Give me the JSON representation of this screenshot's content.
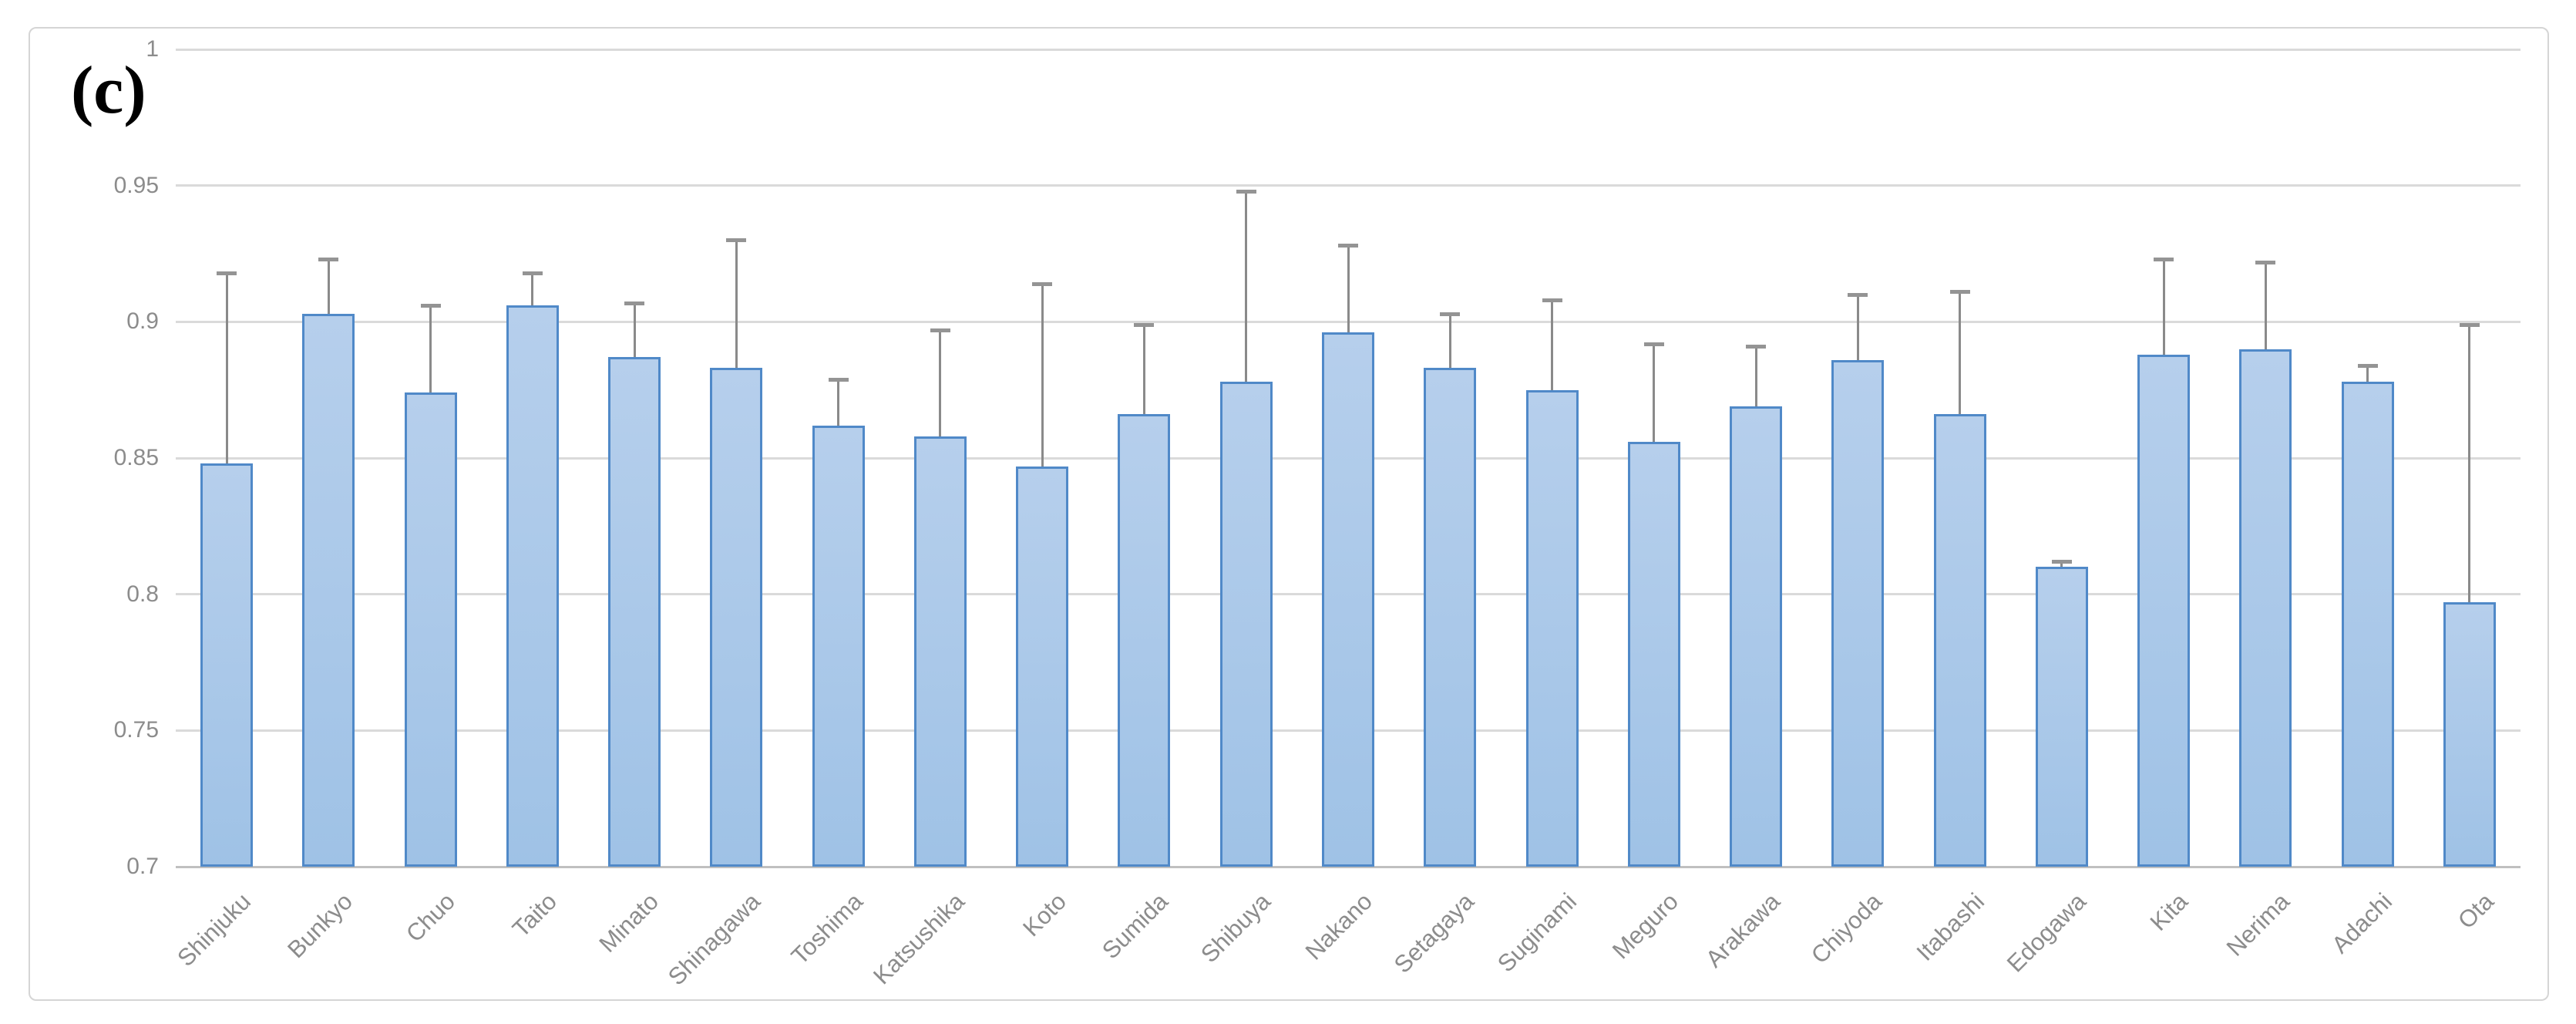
{
  "chart_data": {
    "type": "bar",
    "title": "",
    "panel_label": "(c)",
    "categories": [
      "Shinjuku",
      "Bunkyo",
      "Chuo",
      "Taito",
      "Minato",
      "Shinagawa",
      "Toshima",
      "Katsushika",
      "Koto",
      "Sumida",
      "Shibuya",
      "Nakano",
      "Setagaya",
      "Suginami",
      "Meguro",
      "Arakawa",
      "Chiyoda",
      "Itabashi",
      "Edogawa",
      "Kita",
      "Nerima",
      "Adachi",
      "Ota"
    ],
    "values": [
      0.848,
      0.903,
      0.874,
      0.906,
      0.887,
      0.883,
      0.862,
      0.858,
      0.847,
      0.866,
      0.878,
      0.896,
      0.883,
      0.875,
      0.856,
      0.869,
      0.886,
      0.866,
      0.81,
      0.888,
      0.89,
      0.878,
      0.797
    ],
    "upper_whisker_tops": [
      0.918,
      0.923,
      0.906,
      0.918,
      0.907,
      0.93,
      0.879,
      0.897,
      0.914,
      0.899,
      0.948,
      0.928,
      0.903,
      0.908,
      0.892,
      0.891,
      0.91,
      0.911,
      0.812,
      0.923,
      0.922,
      0.884,
      0.899
    ],
    "ylim": [
      0.7,
      1.0
    ],
    "ytick_labels": [
      "1",
      "0.95",
      "0.9",
      "0.85",
      "0.8",
      "0.75",
      "0.7"
    ],
    "xlabel": "",
    "ylabel": "",
    "grid": true,
    "legend": false,
    "colors": {
      "bar_fill_top": "#B6CFEC",
      "bar_fill_bottom": "#9FC2E6",
      "bar_border": "#5089C8",
      "error_bar": "#8A8A8A",
      "error_cap": "#949494",
      "gridline": "#DADADA",
      "axis_line": "#C0C0C0",
      "tick_label": "#8C8C8C",
      "frame_border": "#D5D5D5",
      "panel_label_color": "#000000"
    }
  }
}
